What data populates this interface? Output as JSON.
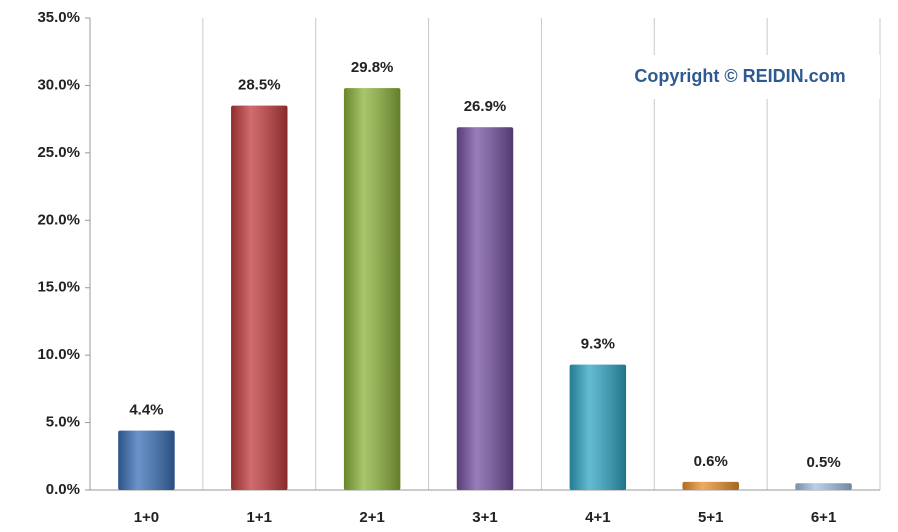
{
  "chart_data": {
    "type": "bar",
    "categories": [
      "1+0",
      "1+1",
      "2+1",
      "3+1",
      "4+1",
      "5+1",
      "6+1"
    ],
    "values": [
      4.4,
      28.5,
      29.8,
      26.9,
      9.3,
      0.6,
      0.5
    ],
    "value_labels": [
      "4.4%",
      "28.5%",
      "29.8%",
      "26.9%",
      "9.3%",
      "0.6%",
      "0.5%"
    ],
    "colors": [
      "#3b6fb6",
      "#c23b3d",
      "#8db33b",
      "#7451a1",
      "#2fa5c3",
      "#e88f2c",
      "#a3bde3"
    ],
    "ylim": [
      0,
      35
    ],
    "yticks": [
      {
        "value": 0,
        "label": "0.0%"
      },
      {
        "value": 5,
        "label": "5.0%"
      },
      {
        "value": 10,
        "label": "10.0%"
      },
      {
        "value": 15,
        "label": "15.0%"
      },
      {
        "value": 20,
        "label": "20.0%"
      },
      {
        "value": 25,
        "label": "25.0%"
      },
      {
        "value": 30,
        "label": "30.0%"
      },
      {
        "value": 35,
        "label": "35.0%"
      }
    ],
    "annotation": "Copyright © REIDIN.com"
  }
}
